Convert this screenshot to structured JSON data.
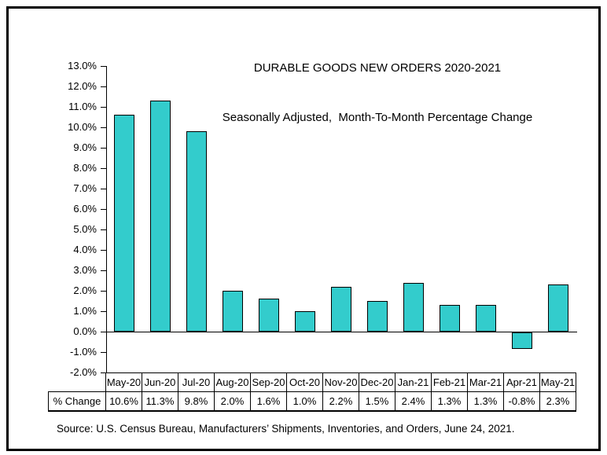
{
  "chart_data": {
    "type": "bar",
    "title": "DURABLE GOODS NEW ORDERS 2020-2021",
    "subtitle": "Seasonally Adjusted,  Month-To-Month Percentage Change",
    "categories": [
      "May-20",
      "Jun-20",
      "Jul-20",
      "Aug-20",
      "Sep-20",
      "Oct-20",
      "Nov-20",
      "Dec-20",
      "Jan-21",
      "Feb-21",
      "Mar-21",
      "Apr-21",
      "May-21"
    ],
    "values": [
      10.6,
      11.3,
      9.8,
      2.0,
      1.6,
      1.0,
      2.2,
      1.5,
      2.4,
      1.3,
      1.3,
      -0.8,
      2.3
    ],
    "value_labels": [
      "10.6%",
      "11.3%",
      "9.8%",
      "2.0%",
      "1.6%",
      "1.0%",
      "2.2%",
      "1.5%",
      "2.4%",
      "1.3%",
      "1.3%",
      "-0.8%",
      "2.3%"
    ],
    "table_row_header": "% Change",
    "xlabel": "",
    "ylabel": "",
    "ylim": [
      -2.0,
      13.0
    ],
    "ytick_step": 1.0,
    "ytick_suffix": "%",
    "grid": false,
    "legend": false,
    "bar_color": "#33CCCC",
    "bar_border_color": "#000000"
  },
  "source": {
    "text": "Source: U.S. Census Bureau, Manufacturers’ Shipments, Inventories, and Orders, June 24, 2021."
  }
}
